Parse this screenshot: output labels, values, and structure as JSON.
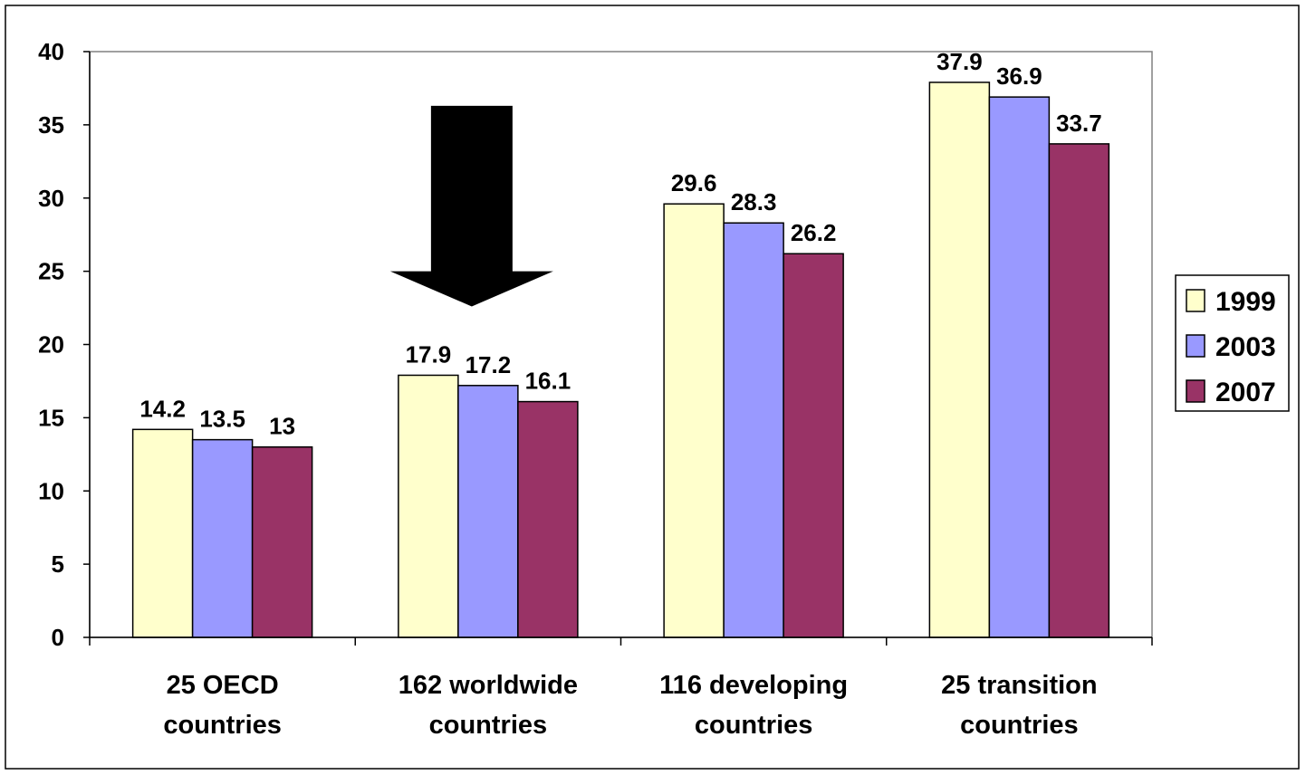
{
  "chart_data": {
    "type": "bar",
    "title": "",
    "xlabel": "",
    "ylabel": "",
    "ylim": [
      0,
      40
    ],
    "ytick_step": 5,
    "grid": false,
    "legend_position": "right",
    "categories": [
      [
        "25 OECD",
        "countries"
      ],
      [
        "162 worldwide",
        "countries"
      ],
      [
        "116 developing",
        "countries"
      ],
      [
        "25 transition",
        "countries"
      ]
    ],
    "series": [
      {
        "name": "1999",
        "color": "#FFFFCC",
        "values": [
          14.2,
          17.9,
          29.6,
          37.9
        ]
      },
      {
        "name": "2003",
        "color": "#9999FF",
        "values": [
          13.5,
          17.2,
          28.3,
          36.9
        ]
      },
      {
        "name": "2007",
        "color": "#993366",
        "values": [
          13,
          16.1,
          26.2,
          33.7
        ]
      }
    ],
    "annotations": [
      {
        "type": "down-arrow",
        "category_index": 1,
        "color": "#000000"
      }
    ]
  }
}
